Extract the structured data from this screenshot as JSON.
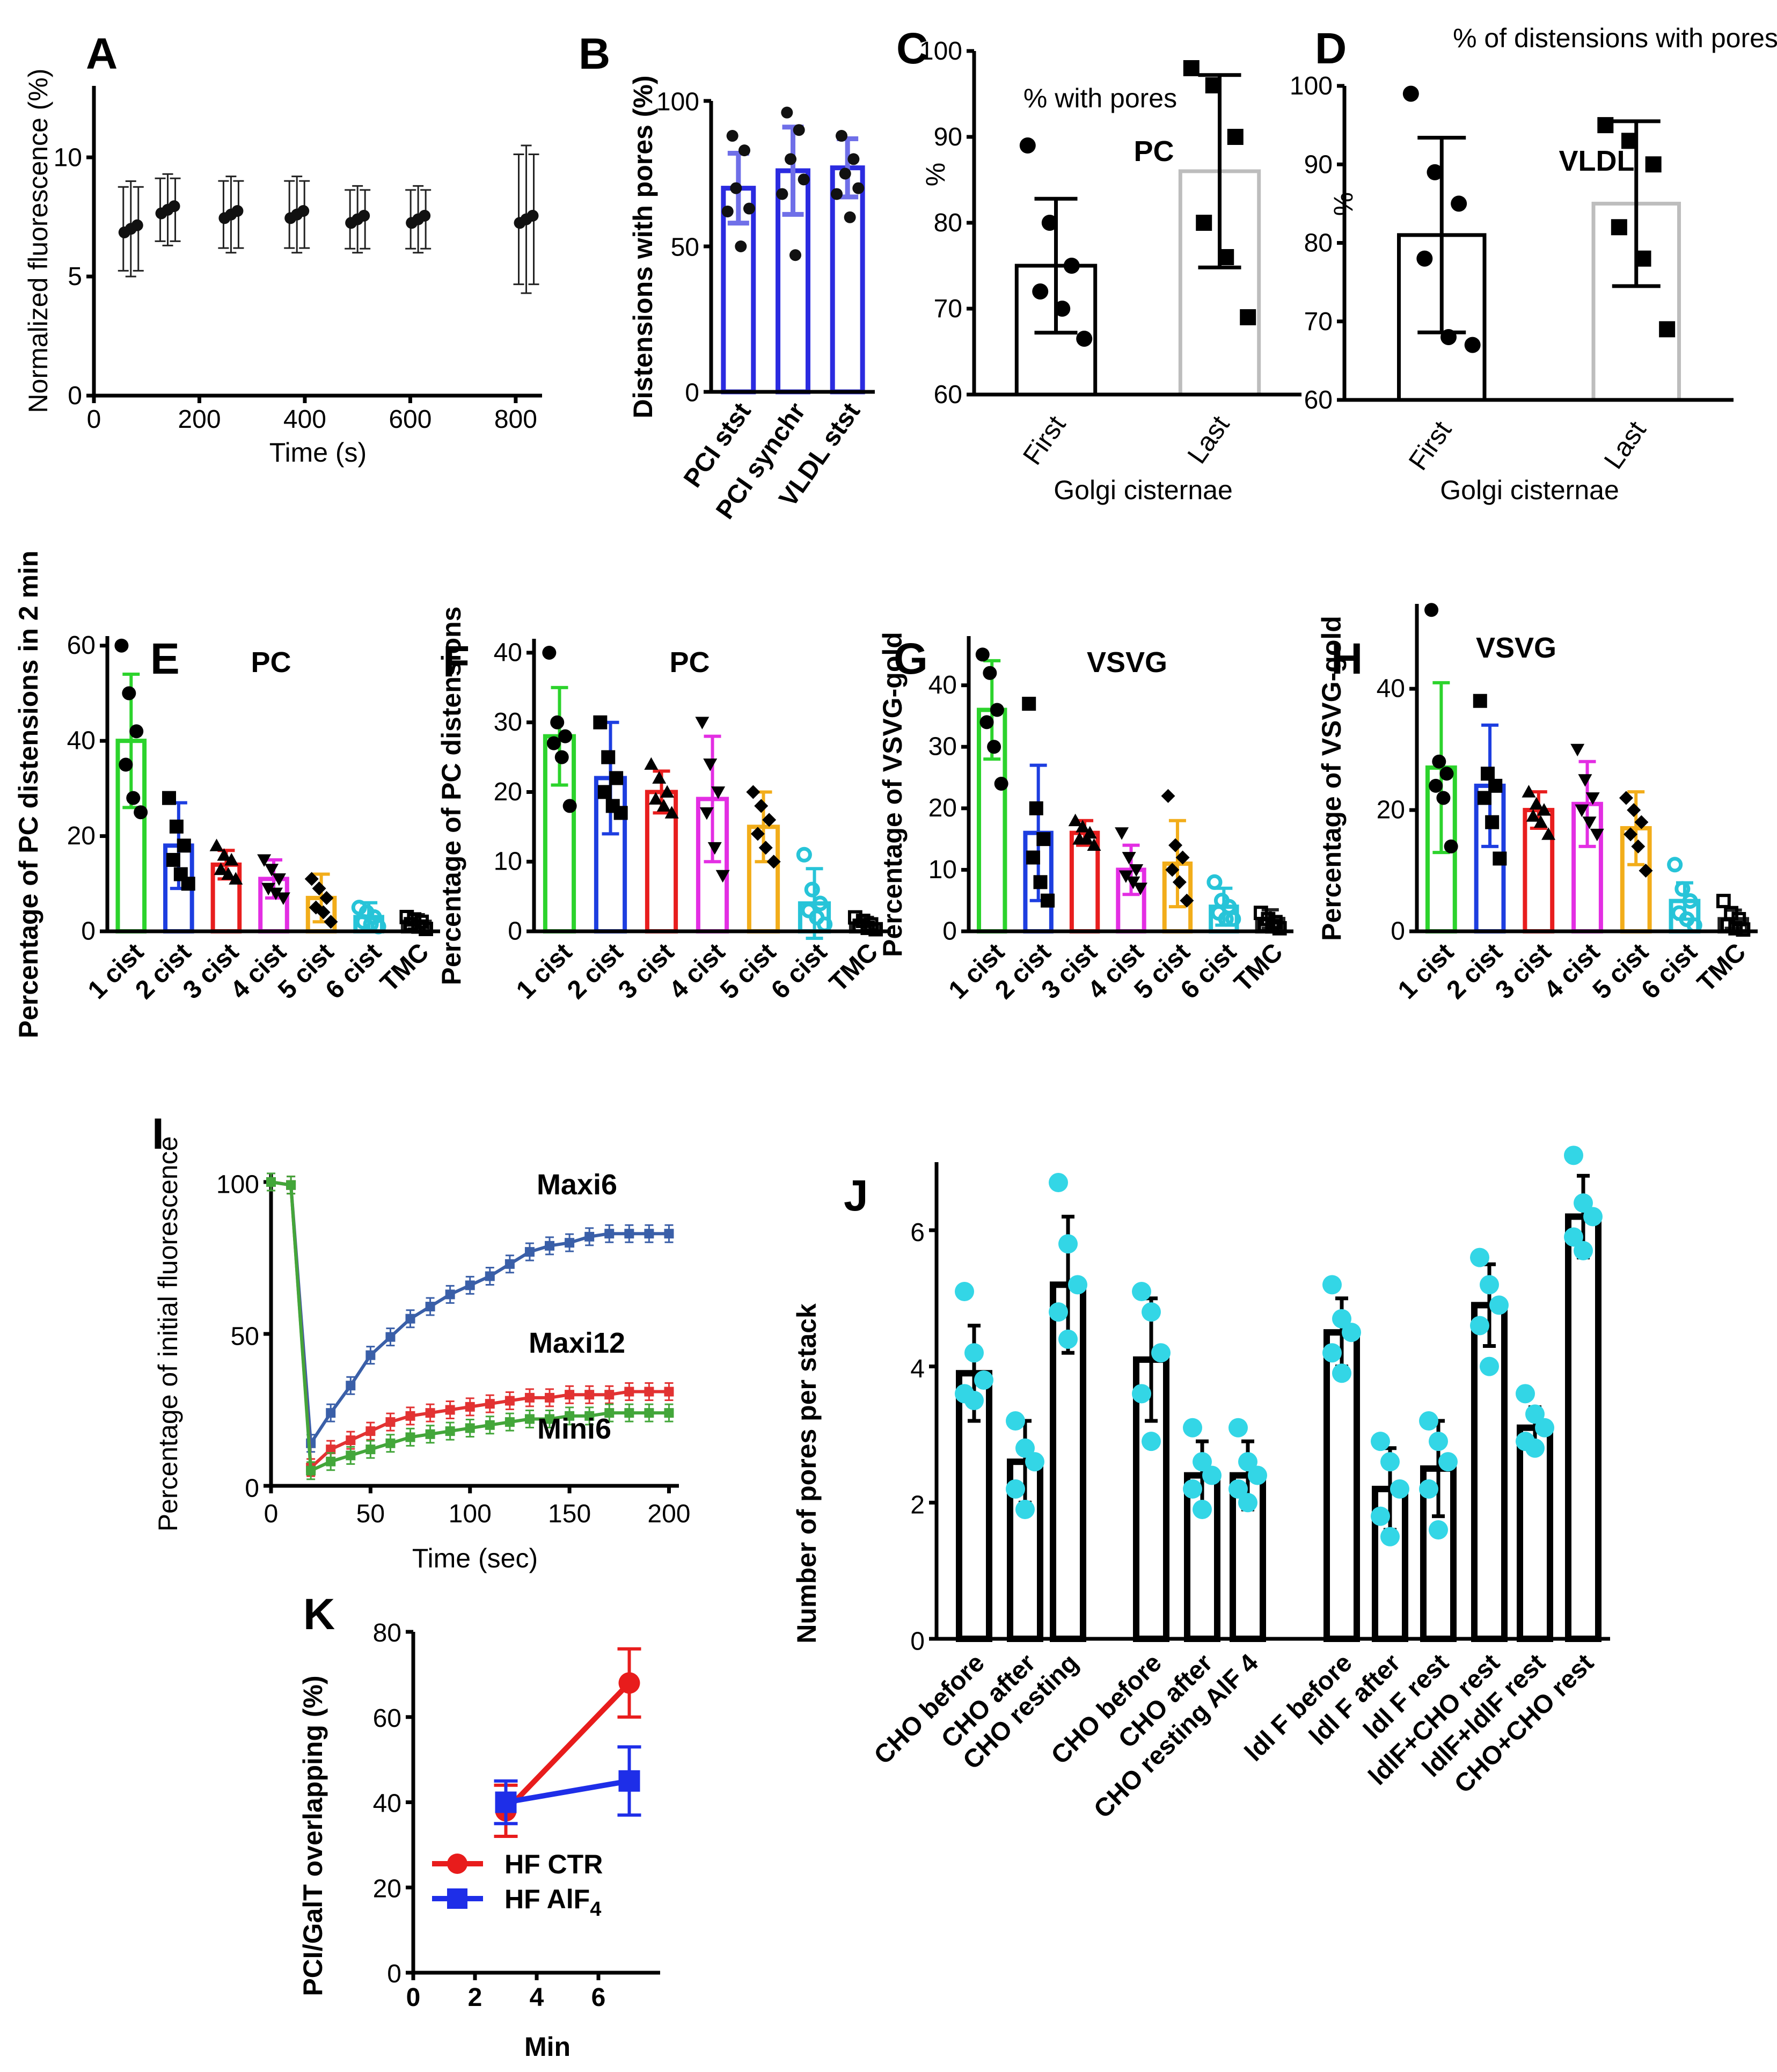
{
  "chart_data": [
    {
      "id": "A",
      "type": "scatter",
      "panel_label": "A",
      "xlabel": "Time (s)",
      "ylabel": "Normalized fluorescence (%)",
      "xlim": [
        0,
        850
      ],
      "ylim": [
        0,
        13
      ],
      "xticks": [
        "0",
        "200",
        "400",
        "600",
        "800"
      ],
      "yticks": [
        "0",
        "5",
        "10"
      ],
      "x": [
        70,
        140,
        260,
        385,
        500,
        615,
        820
      ],
      "y": [
        7.0,
        7.8,
        7.6,
        7.6,
        7.4,
        7.4,
        7.4
      ],
      "err": [
        2.0,
        1.5,
        1.6,
        1.6,
        1.4,
        1.4,
        3.1
      ]
    },
    {
      "id": "B",
      "type": "bar",
      "panel_label": "B",
      "ylabel": "Distensions with pores (%)",
      "ylim": [
        0,
        100
      ],
      "yticks": [
        "0",
        "50",
        "100"
      ],
      "categories": [
        "PCI stst",
        "PCI synchr",
        "VLDL stst"
      ],
      "values": [
        70,
        76,
        77
      ],
      "err": [
        12,
        15,
        10
      ],
      "points": [
        [
          62,
          70,
          83,
          88,
          50,
          63
        ],
        [
          68,
          80,
          90,
          96,
          47,
          73
        ],
        [
          68,
          75,
          80,
          88,
          60,
          70
        ]
      ]
    },
    {
      "id": "C",
      "type": "bar",
      "panel_label": "C",
      "title": "% with pores",
      "annotation": "PC",
      "xlabel": "Golgi cisternae",
      "ylabel": "%",
      "ylim": [
        60,
        100
      ],
      "yticks": [
        "60",
        "70",
        "80",
        "90",
        "100"
      ],
      "categories": [
        "First",
        "Last"
      ],
      "values": [
        75.0,
        86.0
      ],
      "err": [
        7.8,
        11.2
      ],
      "points": [
        [
          89,
          80,
          75,
          72,
          70,
          66.5
        ],
        [
          98,
          96,
          90,
          80,
          76,
          69
        ]
      ]
    },
    {
      "id": "D",
      "type": "bar",
      "panel_label": "D",
      "title": "% of distensions with pores",
      "annotation": "VLDL",
      "xlabel": "Golgi cisternae",
      "ylabel": "%",
      "ylim": [
        60,
        100
      ],
      "yticks": [
        "60",
        "70",
        "80",
        "90",
        "100"
      ],
      "categories": [
        "First",
        "Last"
      ],
      "values": [
        81.0,
        85.0
      ],
      "err": [
        12.4,
        10.5
      ],
      "points": [
        [
          99,
          89,
          85,
          78,
          68,
          67
        ],
        [
          95,
          93,
          90,
          82,
          78,
          69
        ]
      ]
    },
    {
      "id": "E",
      "type": "bar",
      "panel_label": "E",
      "title": "PC",
      "ylabel": "Percentage of PC distensions in 2 min",
      "ylim": [
        0,
        62
      ],
      "yticks": [
        "0",
        "20",
        "40",
        "60"
      ],
      "categories": [
        "1 cist",
        "2 cist",
        "3 cist",
        "4 cist",
        "5 cist",
        "6 cist",
        "TMC"
      ],
      "values": [
        40,
        18,
        14,
        11,
        7,
        3,
        2
      ],
      "err": [
        14,
        9,
        3,
        4,
        5,
        3,
        1.5
      ],
      "colors": [
        "#2cd32c",
        "#1d3ee0",
        "#e81e1e",
        "#e32ee3",
        "#f2ad1a",
        "#27c4d8",
        "#222222"
      ],
      "point_markers": [
        "circle",
        "square",
        "triangle",
        "inv-triangle",
        "diamond",
        "open-circle",
        "open-square"
      ],
      "points": [
        [
          60,
          50,
          42,
          35,
          28,
          25
        ],
        [
          28,
          22,
          18,
          15,
          12,
          10
        ],
        [
          18,
          16,
          15,
          13,
          12,
          11
        ],
        [
          15,
          13,
          11,
          9,
          8,
          7
        ],
        [
          11,
          9,
          7,
          5,
          4,
          2
        ],
        [
          5,
          4,
          3,
          2,
          1.5,
          1
        ],
        [
          3,
          2.5,
          2,
          1.5,
          1,
          0.5
        ]
      ]
    },
    {
      "id": "F",
      "type": "bar",
      "panel_label": "F",
      "title": "PC",
      "ylabel": "Percentage of PC distensions",
      "ylim": [
        0,
        42
      ],
      "yticks": [
        "0",
        "10",
        "20",
        "30",
        "40"
      ],
      "categories": [
        "1 cist",
        "2 cist",
        "3 cist",
        "4 cist",
        "5 cist",
        "6 cist",
        "TMC"
      ],
      "values": [
        28,
        22,
        20,
        19,
        15,
        4,
        1
      ],
      "err": [
        7,
        8,
        3,
        9,
        5,
        5,
        1
      ],
      "colors": [
        "#2cd32c",
        "#1d3ee0",
        "#e81e1e",
        "#e32ee3",
        "#f2ad1a",
        "#27c4d8",
        "#222222"
      ],
      "point_markers": [
        "circle",
        "square",
        "triangle",
        "inv-triangle",
        "diamond",
        "open-circle",
        "open-square"
      ],
      "points": [
        [
          40,
          30,
          28,
          27,
          25,
          18
        ],
        [
          30,
          25,
          22,
          20,
          18,
          17
        ],
        [
          24,
          22,
          20,
          19,
          18,
          17
        ],
        [
          30,
          24,
          20,
          17,
          12,
          8
        ],
        [
          20,
          18,
          16,
          14,
          12,
          10
        ],
        [
          11,
          6,
          4,
          3,
          2,
          1
        ],
        [
          2,
          1.5,
          1,
          0.8,
          0.5,
          0.3
        ]
      ]
    },
    {
      "id": "G",
      "type": "bar",
      "panel_label": "G",
      "title": "VSVG",
      "ylabel": "Percentage of VSVG-gold",
      "ylim": [
        0,
        48
      ],
      "yticks": [
        "0",
        "10",
        "20",
        "30",
        "40"
      ],
      "categories": [
        "1 cist",
        "2 cist",
        "3 cist",
        "4 cist",
        "5 cist",
        "6 cist",
        "TMC"
      ],
      "values": [
        36,
        16,
        16,
        10,
        11,
        4,
        2
      ],
      "err": [
        8,
        11,
        2,
        4,
        7,
        3,
        1.5
      ],
      "colors": [
        "#2cd32c",
        "#1d3ee0",
        "#e81e1e",
        "#e32ee3",
        "#f2ad1a",
        "#27c4d8",
        "#222222"
      ],
      "point_markers": [
        "circle",
        "square",
        "triangle",
        "inv-triangle",
        "diamond",
        "open-circle",
        "open-square"
      ],
      "points": [
        [
          45,
          42,
          36,
          34,
          30,
          24
        ],
        [
          37,
          20,
          15,
          12,
          8,
          5
        ],
        [
          18,
          17,
          16,
          15,
          15,
          14
        ],
        [
          16,
          12,
          10,
          9,
          8,
          7
        ],
        [
          22,
          14,
          12,
          10,
          8,
          5
        ],
        [
          8,
          5,
          4,
          3,
          2,
          2
        ],
        [
          3,
          2,
          1.5,
          1,
          0.8,
          0.5
        ]
      ]
    },
    {
      "id": "H",
      "type": "bar",
      "panel_label": "H",
      "title": "VSVG",
      "ylabel": "Percentage of VSVG-gold",
      "ylim": [
        0,
        54
      ],
      "yticks": [
        "0",
        "20",
        "40"
      ],
      "categories": [
        "1 cist",
        "2 cist",
        "3 cist",
        "4 cist",
        "5 cist",
        "6 cist",
        "TMC"
      ],
      "values": [
        27,
        24,
        20,
        21,
        17,
        5,
        2
      ],
      "err": [
        14,
        10,
        3,
        7,
        6,
        3,
        1.5
      ],
      "colors": [
        "#2cd32c",
        "#1d3ee0",
        "#e81e1e",
        "#e32ee3",
        "#f2ad1a",
        "#27c4d8",
        "#222222"
      ],
      "point_markers": [
        "circle",
        "square",
        "triangle",
        "inv-triangle",
        "diamond",
        "open-circle",
        "open-square"
      ],
      "points": [
        [
          53,
          28,
          26,
          24,
          22,
          14
        ],
        [
          38,
          26,
          24,
          22,
          18,
          12
        ],
        [
          23,
          21,
          20,
          19,
          18,
          16
        ],
        [
          30,
          25,
          22,
          20,
          18,
          16
        ],
        [
          22,
          20,
          18,
          16,
          14,
          10
        ],
        [
          11,
          7,
          5,
          3,
          2,
          1
        ],
        [
          5,
          3,
          2,
          1,
          0.5,
          0.3
        ]
      ]
    },
    {
      "id": "I",
      "type": "line",
      "panel_label": "I",
      "xlabel": "Time (sec)",
      "ylabel": "Percentage of initial fluorescence",
      "xlim": [
        0,
        205
      ],
      "ylim": [
        0,
        103
      ],
      "xticks": [
        "0",
        "50",
        "100",
        "150",
        "200"
      ],
      "yticks": [
        "0",
        "50",
        "100"
      ],
      "x": [
        0,
        10,
        20,
        30,
        40,
        50,
        60,
        70,
        80,
        90,
        100,
        110,
        120,
        130,
        140,
        150,
        160,
        170,
        180,
        190,
        200
      ],
      "series": [
        {
          "name": "Maxi6",
          "color": "#3a5fa8",
          "marker": "square",
          "values": [
            100,
            99,
            14,
            24,
            33,
            43,
            49,
            55,
            59,
            63,
            66,
            69,
            73,
            77,
            79,
            80,
            82,
            83,
            83,
            83,
            83
          ]
        },
        {
          "name": "Maxi12",
          "color": "#e23232",
          "marker": "square",
          "values": [
            100,
            99,
            6,
            12,
            15,
            18,
            21,
            23,
            24,
            25,
            26,
            27,
            28,
            29,
            29,
            30,
            30,
            30,
            31,
            31,
            31
          ]
        },
        {
          "name": "Mini6",
          "color": "#43a63a",
          "marker": "square",
          "values": [
            100,
            99,
            5,
            8,
            10,
            12,
            14,
            16,
            17,
            18,
            19,
            20,
            21,
            22,
            22,
            23,
            23,
            24,
            24,
            24,
            24
          ]
        }
      ]
    },
    {
      "id": "J",
      "type": "bar",
      "panel_label": "J",
      "ylabel": "Number of pores per stack",
      "ylim": [
        0,
        7
      ],
      "yticks": [
        "0",
        "2",
        "4",
        "6"
      ],
      "categories": [
        "CHO before",
        "CHO after",
        "CHO resting",
        "CHO before",
        "CHO after",
        "CHO resting AlF 4",
        "ldl F before",
        "ldl F after",
        "ldl F rest",
        "ldlF+CHO rest",
        "ldlF+ldlF rest",
        "CHO+CHO rest"
      ],
      "values": [
        3.9,
        2.6,
        5.2,
        4.1,
        2.4,
        2.4,
        4.5,
        2.2,
        2.5,
        4.9,
        3.1,
        6.2
      ],
      "err": [
        0.7,
        0.6,
        1.0,
        0.9,
        0.5,
        0.5,
        0.5,
        0.6,
        0.7,
        0.6,
        0.3,
        0.6
      ],
      "point_color": "#33d6e6",
      "points": [
        [
          5.1,
          4.2,
          3.8,
          3.6,
          3.5
        ],
        [
          3.2,
          2.8,
          2.6,
          2.2,
          1.9
        ],
        [
          6.7,
          5.8,
          5.2,
          4.8,
          4.4
        ],
        [
          5.1,
          4.8,
          4.2,
          3.6,
          2.9
        ],
        [
          3.1,
          2.6,
          2.4,
          2.2,
          1.9
        ],
        [
          3.1,
          2.6,
          2.4,
          2.2,
          2.0
        ],
        [
          5.2,
          4.7,
          4.5,
          4.2,
          3.9
        ],
        [
          2.9,
          2.6,
          2.2,
          1.8,
          1.5
        ],
        [
          3.2,
          2.9,
          2.6,
          2.2,
          1.6
        ],
        [
          5.6,
          5.2,
          4.9,
          4.6,
          4.0
        ],
        [
          3.6,
          3.3,
          3.1,
          2.9,
          2.8
        ],
        [
          7.1,
          6.4,
          6.2,
          5.9,
          5.7
        ]
      ]
    },
    {
      "id": "K",
      "type": "line",
      "panel_label": "K",
      "xlabel": "Min",
      "ylabel": "PCI/GalT overlapping (%)",
      "xlim": [
        0,
        8
      ],
      "ylim": [
        0,
        80
      ],
      "xticks": [
        "0",
        "2",
        "4",
        "6"
      ],
      "yticks": [
        "0",
        "20",
        "40",
        "60",
        "80"
      ],
      "x": [
        3,
        7
      ],
      "series": [
        {
          "name": "HF CTR",
          "color": "#e81c1c",
          "marker": "circle",
          "values": [
            38,
            68
          ],
          "err": [
            6,
            8
          ]
        },
        {
          "name": "HF AlF",
          "name_subscript": "4",
          "color": "#1e2ee8",
          "marker": "square",
          "values": [
            40,
            45
          ],
          "err": [
            5,
            8
          ]
        }
      ]
    }
  ]
}
